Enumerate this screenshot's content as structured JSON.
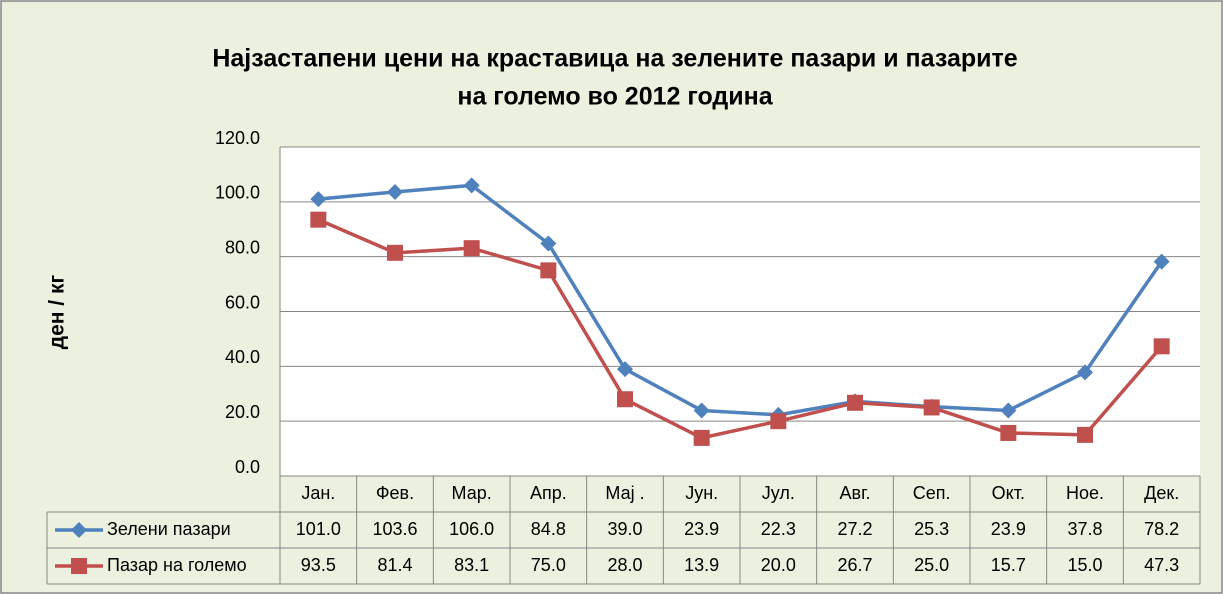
{
  "chart_data": {
    "type": "line",
    "title": [
      "Најзастапени  цени на краставица  на зелените пазари  и пазарите",
      "на големо во 2012 година"
    ],
    "y_label": "ден / кг",
    "categories": [
      "Јан.",
      "Фев.",
      "Мар.",
      "Апр.",
      "Мај .",
      "Јун.",
      "Јул.",
      "Авг.",
      "Сеп.",
      "Окт.",
      "Ное.",
      "Дек."
    ],
    "series": [
      {
        "name": "Зелени пазари",
        "color": "#4f81bd",
        "marker": "diamond",
        "values": [
          101,
          103.6,
          106,
          84.8,
          39,
          23.9,
          22.3,
          27.2,
          25.3,
          23.9,
          37.8,
          78.2
        ],
        "value_labels": [
          "101.0",
          "103.6",
          "106.0",
          "84.8",
          "39.0",
          "23.9",
          "22.3",
          "27.2",
          "25.3",
          "23.9",
          "37.8",
          "78.2"
        ]
      },
      {
        "name": "Пазар на големо",
        "color": "#c0504d",
        "marker": "square",
        "values": [
          93.5,
          81.4,
          83.1,
          75,
          28,
          13.9,
          20,
          26.7,
          25,
          15.7,
          15,
          47.3
        ],
        "value_labels": [
          "93.5",
          "81.4",
          "83.1",
          "75.0",
          "28.0",
          "13.9",
          "20.0",
          "26.7",
          "25.0",
          "15.7",
          "15.0",
          "47.3"
        ]
      }
    ],
    "ylim": [
      0,
      120
    ],
    "yticks": [
      {
        "value": 0,
        "label": "0.0"
      },
      {
        "value": 20,
        "label": "20.0"
      },
      {
        "value": 40,
        "label": "40.0"
      },
      {
        "value": 60,
        "label": "60.0"
      },
      {
        "value": 80,
        "label": "80.0"
      },
      {
        "value": 100,
        "label": "100.0"
      },
      {
        "value": 120,
        "label": "120.0"
      }
    ],
    "grid": true
  }
}
